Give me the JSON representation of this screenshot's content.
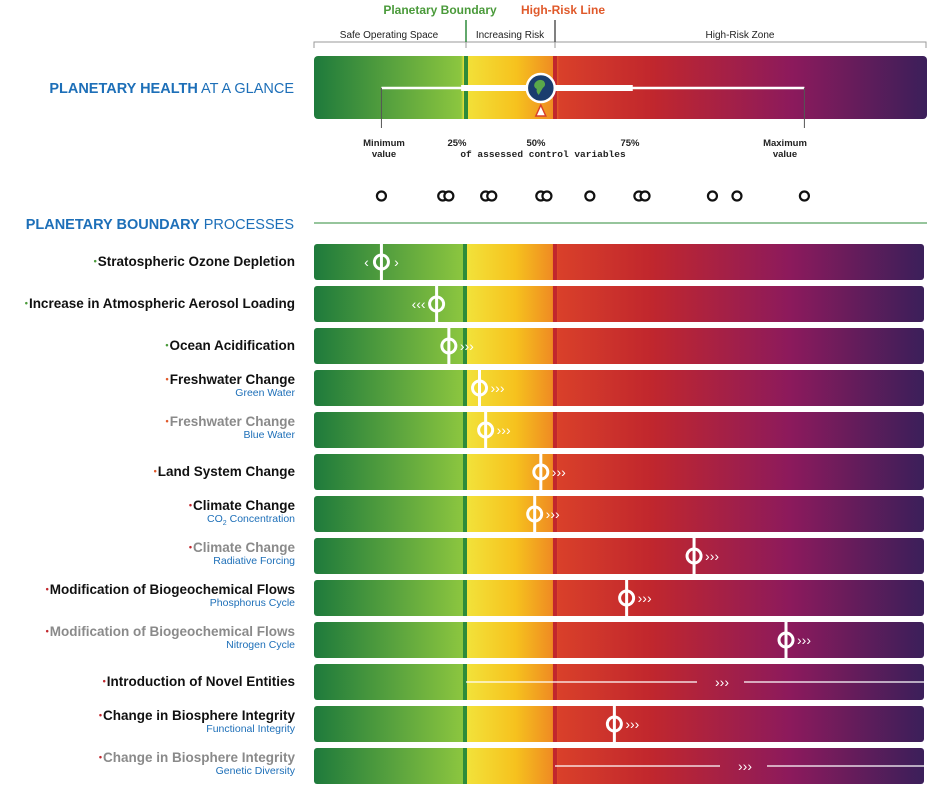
{
  "header": {
    "planetary_boundary_label": "Planetary Boundary",
    "high_risk_line_label": "High-Risk Line",
    "zone_safe": "Safe Operating Space",
    "zone_increasing": "Increasing Risk",
    "zone_high": "High-Risk Zone"
  },
  "glance": {
    "title_bold": "PLANETARY HEALTH",
    "title_rest": " AT A GLANCE",
    "min_label_1": "Minimum",
    "min_label_2": "value",
    "p25": "25%",
    "p50": "50%",
    "p75": "75%",
    "max_label_1": "Maximum",
    "max_label_2": "value",
    "caption": "of assessed control variables"
  },
  "processes_title_bold": "PLANETARY BOUNDARY",
  "processes_title_rest": " PROCESSES",
  "colors": {
    "safe_dark": "#1e7a3c",
    "safe_light": "#8cc63f",
    "boundary_line": "#2e8b3a",
    "risk_yellow": "#f6d11e",
    "risk_orange": "#ef8c22",
    "high_risk_line": "#c1272d",
    "red": "#c1272d",
    "magenta": "#8c1a5c",
    "purple": "#3b1f5a",
    "title_blue": "#1d6fb8",
    "green_text": "#4a9a3a",
    "orange_text": "#e0592a"
  },
  "chart_data": {
    "type": "range",
    "summary_dots": [
      0.11,
      0.21,
      0.22,
      0.28,
      0.29,
      0.37,
      0.38,
      0.45,
      0.53,
      0.54,
      0.65,
      0.69,
      0.8
    ],
    "summary_range": [
      0.11,
      0.8
    ],
    "summary_iqr": [
      0.24,
      0.52
    ],
    "summary_median": 0.37,
    "processes": [
      {
        "name": "Stratospheric Ozone Depletion",
        "sub": "",
        "status": 0.11,
        "trend": "stable",
        "faded": false,
        "dot_color": "#4a9a3a"
      },
      {
        "name": "Increase in Atmospheric Aerosol Loading",
        "sub": "",
        "status": 0.2,
        "trend": "improving",
        "faded": false,
        "dot_color": "#4a9a3a"
      },
      {
        "name": "Ocean Acidification",
        "sub": "",
        "status": 0.22,
        "trend": "worsening",
        "faded": false,
        "dot_color": "#4a9a3a"
      },
      {
        "name": "Freshwater Change",
        "sub": "Green Water",
        "status": 0.27,
        "trend": "worsening",
        "faded": false,
        "dot_color": "#e0592a"
      },
      {
        "name": "Freshwater Change",
        "sub": "Blue Water",
        "status": 0.28,
        "trend": "worsening",
        "faded": true,
        "dot_color": "#e0592a"
      },
      {
        "name": "Land System Change",
        "sub": "",
        "status": 0.37,
        "trend": "worsening",
        "faded": false,
        "dot_color": "#e0592a"
      },
      {
        "name": "Climate Change",
        "sub": "CO2 Concentration",
        "status": 0.36,
        "trend": "worsening",
        "faded": false,
        "dot_color": "#c1272d"
      },
      {
        "name": "Climate Change",
        "sub": "Radiative Forcing",
        "status": 0.62,
        "trend": "worsening",
        "faded": true,
        "dot_color": "#c1272d"
      },
      {
        "name": "Modification of Biogeochemical Flows",
        "sub": "Phosphorus Cycle",
        "status": 0.51,
        "trend": "worsening",
        "faded": false,
        "dot_color": "#c1272d"
      },
      {
        "name": "Modification of Biogeochemical Flows",
        "sub": "Nitrogen Cycle",
        "status": 0.77,
        "trend": "worsening",
        "faded": true,
        "dot_color": "#c1272d"
      },
      {
        "name": "Introduction of Novel Entities",
        "sub": "",
        "status": null,
        "trend": "worsening",
        "faded": false,
        "dot_color": "#c1272d"
      },
      {
        "name": "Change in Biosphere Integrity",
        "sub": "Functional Integrity",
        "status": 0.49,
        "trend": "worsening",
        "faded": false,
        "dot_color": "#c1272d"
      },
      {
        "name": "Change in Biosphere Integrity",
        "sub": "Genetic Diversity",
        "status": null,
        "trend": "worsening",
        "faded": true,
        "dot_color": "#c1272d"
      }
    ]
  }
}
